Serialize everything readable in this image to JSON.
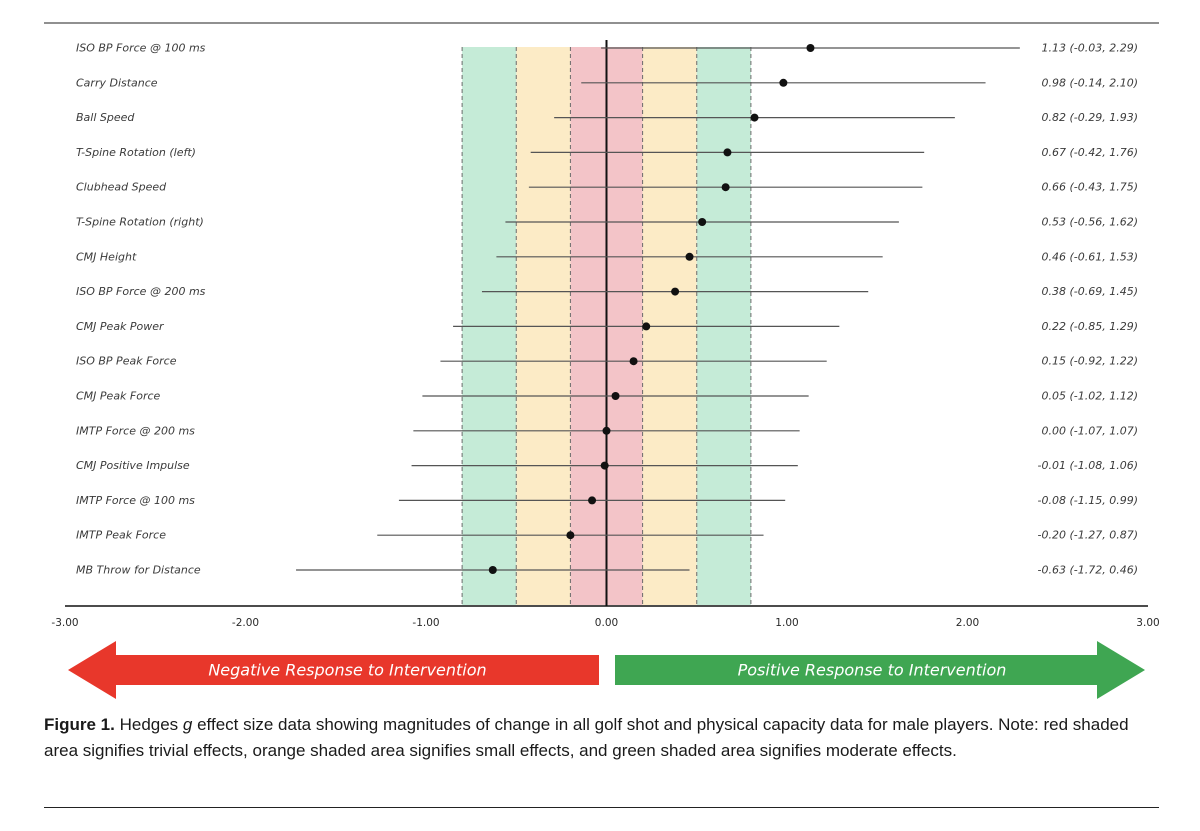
{
  "chart_data": {
    "type": "forest",
    "x_min": -3.0,
    "x_max": 3.0,
    "tick_labels": [
      "-3.00",
      "-2.00",
      "-1.00",
      "0.00",
      "1.00",
      "2.00",
      "3.00"
    ],
    "tick_values": [
      -3,
      -2,
      -1,
      0,
      1,
      2,
      3
    ],
    "zones": [
      {
        "name": "trivial",
        "from": -0.2,
        "to": 0.2,
        "color": "#f3c4c8"
      },
      {
        "name": "small",
        "from": -0.5,
        "to": -0.2,
        "color": "#fcebc6"
      },
      {
        "name": "small",
        "from": 0.2,
        "to": 0.5,
        "color": "#fcebc6"
      },
      {
        "name": "moderate",
        "from": -0.8,
        "to": -0.5,
        "color": "#c5ebd7"
      },
      {
        "name": "moderate",
        "from": 0.5,
        "to": 0.8,
        "color": "#c5ebd7"
      }
    ],
    "rows": [
      {
        "label": "ISO BP Force @ 100 ms",
        "g": 1.13,
        "lo": -0.03,
        "hi": 2.29,
        "text": "1.13 (-0.03, 2.29)"
      },
      {
        "label": "Carry Distance",
        "g": 0.98,
        "lo": -0.14,
        "hi": 2.1,
        "text": "0.98 (-0.14, 2.10)"
      },
      {
        "label": "Ball Speed",
        "g": 0.82,
        "lo": -0.29,
        "hi": 1.93,
        "text": "0.82 (-0.29, 1.93)"
      },
      {
        "label": "T-Spine Rotation (left)",
        "g": 0.67,
        "lo": -0.42,
        "hi": 1.76,
        "text": "0.67 (-0.42, 1.76)"
      },
      {
        "label": "Clubhead Speed",
        "g": 0.66,
        "lo": -0.43,
        "hi": 1.75,
        "text": "0.66 (-0.43, 1.75)"
      },
      {
        "label": "T-Spine Rotation (right)",
        "g": 0.53,
        "lo": -0.56,
        "hi": 1.62,
        "text": "0.53 (-0.56, 1.62)"
      },
      {
        "label": "CMJ Height",
        "g": 0.46,
        "lo": -0.61,
        "hi": 1.53,
        "text": "0.46 (-0.61, 1.53)"
      },
      {
        "label": "ISO BP Force @ 200 ms",
        "g": 0.38,
        "lo": -0.69,
        "hi": 1.45,
        "text": "0.38 (-0.69, 1.45)"
      },
      {
        "label": "CMJ Peak Power",
        "g": 0.22,
        "lo": -0.85,
        "hi": 1.29,
        "text": "0.22 (-0.85, 1.29)"
      },
      {
        "label": "ISO BP Peak Force",
        "g": 0.15,
        "lo": -0.92,
        "hi": 1.22,
        "text": "0.15 (-0.92, 1.22)"
      },
      {
        "label": "CMJ Peak Force",
        "g": 0.05,
        "lo": -1.02,
        "hi": 1.12,
        "text": "0.05 (-1.02, 1.12)"
      },
      {
        "label": "IMTP Force @ 200 ms",
        "g": 0.0,
        "lo": -1.07,
        "hi": 1.07,
        "text": "0.00 (-1.07, 1.07)"
      },
      {
        "label": "CMJ Positive Impulse",
        "g": -0.01,
        "lo": -1.08,
        "hi": 1.06,
        "text": "-0.01 (-1.08, 1.06)"
      },
      {
        "label": "IMTP Force @ 100 ms",
        "g": -0.08,
        "lo": -1.15,
        "hi": 0.99,
        "text": "-0.08 (-1.15, 0.99)"
      },
      {
        "label": "IMTP Peak Force",
        "g": -0.2,
        "lo": -1.27,
        "hi": 0.87,
        "text": "-0.20 (-1.27, 0.87)"
      },
      {
        "label": "MB Throw for Distance",
        "g": -0.63,
        "lo": -1.72,
        "hi": 0.46,
        "text": "-0.63 (-1.72, 0.46)"
      }
    ],
    "negative_label": "Negative Response to Intervention",
    "positive_label": "Positive Response to Intervention",
    "negative_color": "#e8372b",
    "positive_color": "#3fa652"
  },
  "caption": {
    "figure_label": "Figure 1.",
    "text_1": " Hedges ",
    "stat_symbol": "g",
    "text_2": " effect size data showing magnitudes of change in all golf shot and physical capacity data for male players. Note: red shaded area signifies trivial effects, orange shaded area signifies small effects, and green shaded area signifies moderate effects."
  }
}
